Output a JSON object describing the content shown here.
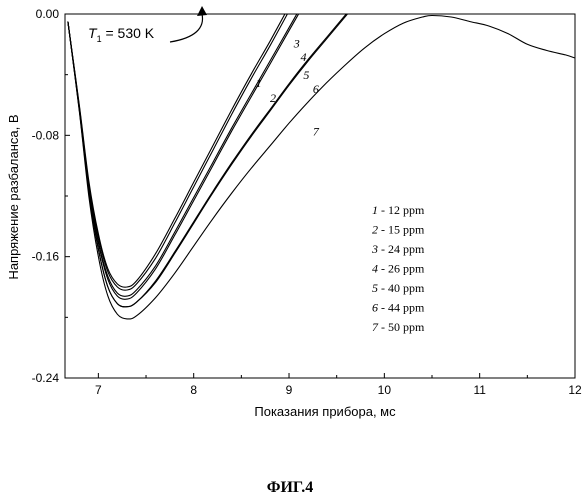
{
  "chart_data": {
    "type": "line",
    "title": "",
    "xlabel": "Показания прибора, мс",
    "ylabel": "Напряжение разбаланса, В",
    "xlim": [
      6.65,
      12
    ],
    "ylim": [
      -0.24,
      0.0
    ],
    "x_ticks": [
      {
        "value": 7,
        "label": "7"
      },
      {
        "value": 8,
        "label": "8"
      },
      {
        "value": 9,
        "label": "9"
      },
      {
        "value": 10,
        "label": "10"
      },
      {
        "value": 11,
        "label": "11"
      },
      {
        "value": 12,
        "label": "12"
      }
    ],
    "y_ticks": [
      {
        "value": 0.0,
        "label": "0.00"
      },
      {
        "value": -0.08,
        "label": "-0.08"
      },
      {
        "value": -0.16,
        "label": "-0.16"
      },
      {
        "value": -0.24,
        "label": "-0.24"
      }
    ],
    "annotation": {
      "symbol": "T",
      "subscript": "1",
      "text": " = 530 K"
    },
    "legend": [
      {
        "num": "1",
        "text": " - 12 ppm"
      },
      {
        "num": "2",
        "text": " - 15 ppm"
      },
      {
        "num": "3",
        "text": " - 24 ppm"
      },
      {
        "num": "4",
        "text": " - 26 ppm"
      },
      {
        "num": "5",
        "text": " - 40 ppm"
      },
      {
        "num": "6",
        "text": " - 44 ppm"
      },
      {
        "num": "7",
        "text": " - 50 ppm"
      }
    ],
    "series": [
      {
        "name": "1",
        "label_at": [
          8.65,
          -0.048
        ],
        "x": [
          6.68,
          6.8,
          6.9,
          7.0,
          7.1,
          7.2,
          7.3,
          7.4,
          7.6,
          7.8,
          8.0,
          8.2,
          8.4,
          8.6,
          8.8,
          9.0,
          9.2
        ],
        "y": [
          -0.005,
          -0.06,
          -0.11,
          -0.145,
          -0.168,
          -0.178,
          -0.18,
          -0.176,
          -0.158,
          -0.135,
          -0.111,
          -0.087,
          -0.063,
          -0.04,
          -0.018,
          0.005,
          0.028
        ]
      },
      {
        "name": "2",
        "label_at": [
          8.8,
          -0.058
        ],
        "x": [
          6.68,
          6.8,
          6.9,
          7.0,
          7.1,
          7.2,
          7.3,
          7.4,
          7.6,
          7.8,
          8.0,
          8.2,
          8.4,
          8.6,
          8.8,
          9.0,
          9.2
        ],
        "y": [
          -0.005,
          -0.061,
          -0.112,
          -0.147,
          -0.17,
          -0.18,
          -0.182,
          -0.178,
          -0.161,
          -0.138,
          -0.114,
          -0.09,
          -0.066,
          -0.043,
          -0.021,
          0.002,
          0.025
        ]
      },
      {
        "name": "3",
        "label_at": [
          9.05,
          -0.022
        ],
        "x": [
          6.68,
          6.8,
          6.9,
          7.0,
          7.1,
          7.2,
          7.3,
          7.4,
          7.6,
          7.8,
          8.0,
          8.2,
          8.4,
          8.6,
          8.8,
          9.0,
          9.2,
          9.3
        ],
        "y": [
          -0.005,
          -0.062,
          -0.114,
          -0.15,
          -0.173,
          -0.184,
          -0.186,
          -0.182,
          -0.166,
          -0.144,
          -0.121,
          -0.098,
          -0.075,
          -0.053,
          -0.031,
          -0.009,
          0.013,
          0.024
        ]
      },
      {
        "name": "4",
        "label_at": [
          9.12,
          -0.031
        ],
        "x": [
          6.68,
          6.8,
          6.9,
          7.0,
          7.1,
          7.2,
          7.3,
          7.4,
          7.6,
          7.8,
          8.0,
          8.2,
          8.4,
          8.6,
          8.8,
          9.0,
          9.2,
          9.3
        ],
        "y": [
          -0.005,
          -0.062,
          -0.115,
          -0.151,
          -0.175,
          -0.186,
          -0.188,
          -0.184,
          -0.168,
          -0.146,
          -0.123,
          -0.1,
          -0.077,
          -0.055,
          -0.033,
          -0.011,
          0.011,
          0.022
        ]
      },
      {
        "name": "5",
        "label_at": [
          9.15,
          -0.043
        ],
        "x": [
          6.68,
          6.8,
          6.9,
          7.0,
          7.1,
          7.2,
          7.3,
          7.4,
          7.6,
          7.8,
          8.0,
          8.2,
          8.4,
          8.6,
          8.8,
          9.0,
          9.2,
          9.4,
          9.6,
          9.8
        ],
        "y": [
          -0.005,
          -0.063,
          -0.117,
          -0.155,
          -0.18,
          -0.191,
          -0.193,
          -0.19,
          -0.176,
          -0.157,
          -0.137,
          -0.117,
          -0.098,
          -0.08,
          -0.063,
          -0.046,
          -0.03,
          -0.015,
          0.0,
          0.015
        ]
      },
      {
        "name": "6",
        "label_at": [
          9.25,
          -0.052
        ],
        "x": [
          6.68,
          6.8,
          6.9,
          7.0,
          7.1,
          7.2,
          7.3,
          7.4,
          7.6,
          7.8,
          8.0,
          8.2,
          8.4,
          8.6,
          8.8,
          9.0,
          9.2,
          9.4,
          9.6,
          9.8
        ],
        "y": [
          -0.005,
          -0.063,
          -0.117,
          -0.155,
          -0.18,
          -0.191,
          -0.193,
          -0.19,
          -0.177,
          -0.158,
          -0.138,
          -0.118,
          -0.099,
          -0.081,
          -0.064,
          -0.047,
          -0.031,
          -0.016,
          -0.001,
          0.014
        ]
      },
      {
        "name": "7",
        "label_at": [
          9.25,
          -0.08
        ],
        "x": [
          6.68,
          6.8,
          6.9,
          7.0,
          7.1,
          7.2,
          7.3,
          7.4,
          7.6,
          7.8,
          8.0,
          8.2,
          8.4,
          8.6,
          8.8,
          9.0,
          9.2,
          9.4,
          9.6,
          9.8,
          10.0,
          10.2,
          10.4,
          10.5,
          10.7,
          10.9,
          11.1,
          11.3,
          11.5,
          11.7,
          11.9,
          12.0
        ],
        "y": [
          -0.005,
          -0.064,
          -0.12,
          -0.16,
          -0.186,
          -0.198,
          -0.201,
          -0.199,
          -0.187,
          -0.171,
          -0.153,
          -0.135,
          -0.118,
          -0.102,
          -0.087,
          -0.072,
          -0.058,
          -0.045,
          -0.033,
          -0.022,
          -0.013,
          -0.006,
          -0.002,
          -0.001,
          -0.002,
          -0.005,
          -0.008,
          -0.013,
          -0.02,
          -0.024,
          -0.027,
          -0.029
        ]
      }
    ]
  },
  "caption": "ФИГ.4"
}
